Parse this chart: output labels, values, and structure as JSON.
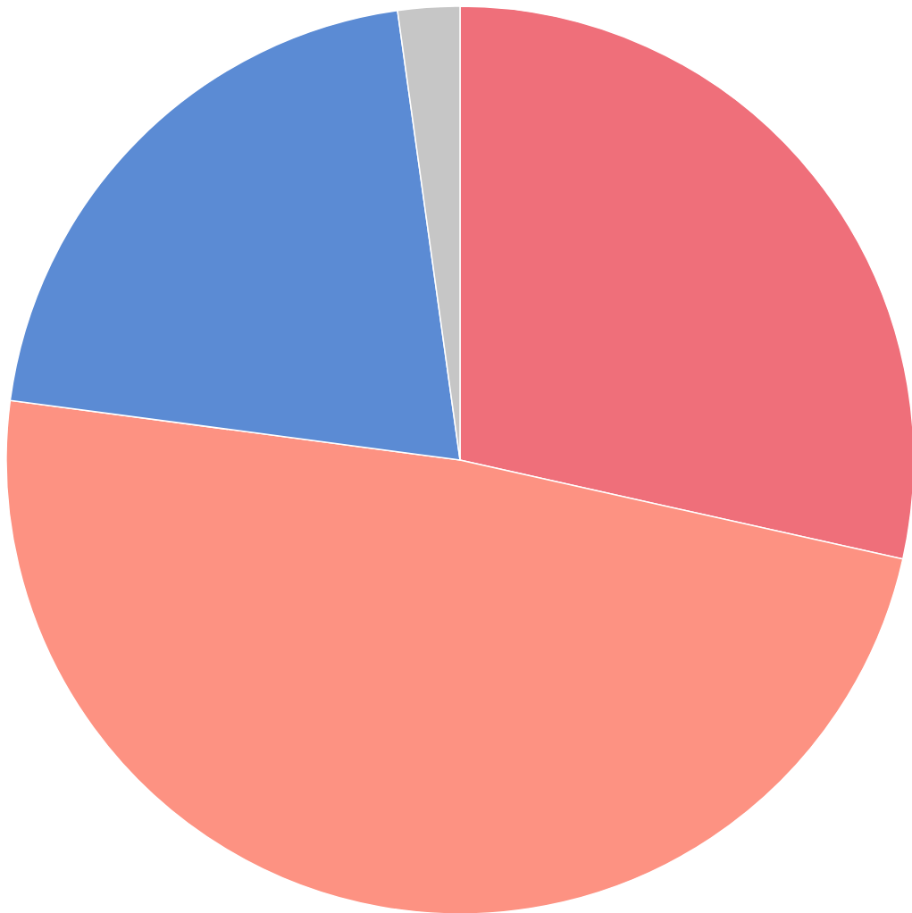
{
  "chart_data": {
    "type": "pie",
    "categories": [
      null,
      null,
      null,
      null
    ],
    "values": [
      28.5,
      48.6,
      20.7,
      2.2
    ],
    "colors": [
      "#ef6f7a",
      "#fd9282",
      "#5b8bd4",
      "#c6c6c6"
    ]
  }
}
